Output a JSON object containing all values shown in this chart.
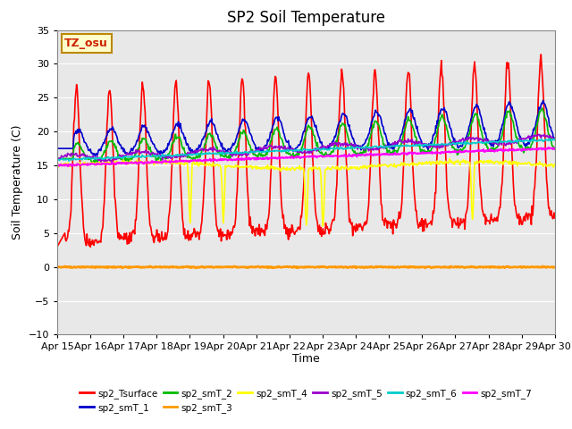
{
  "title": "SP2 Soil Temperature",
  "ylabel": "Soil Temperature (C)",
  "xlabel": "Time",
  "annotation": "TZ_osu",
  "ylim": [
    -10,
    35
  ],
  "background_color": "#ffffff",
  "plot_bg_color": "#e8e8e8",
  "n_days": 15,
  "series_colors": {
    "sp2_Tsurface": "#ff0000",
    "sp2_smT_1": "#0000cc",
    "sp2_smT_2": "#00bb00",
    "sp2_smT_3": "#ff9900",
    "sp2_smT_4": "#ffff00",
    "sp2_smT_5": "#9900cc",
    "sp2_smT_6": "#00cccc",
    "sp2_smT_7": "#ff00ff"
  },
  "series_lw": {
    "sp2_Tsurface": 1.2,
    "sp2_smT_1": 1.2,
    "sp2_smT_2": 1.2,
    "sp2_smT_3": 2.0,
    "sp2_smT_4": 1.2,
    "sp2_smT_5": 1.2,
    "sp2_smT_6": 1.2,
    "sp2_smT_7": 1.5
  },
  "yticks": [
    -10,
    -5,
    0,
    5,
    10,
    15,
    20,
    25,
    30,
    35
  ],
  "xtick_labels": [
    "Apr 15",
    "Apr 16",
    "Apr 17",
    "Apr 18",
    "Apr 19",
    "Apr 20",
    "Apr 21",
    "Apr 22",
    "Apr 23",
    "Apr 24",
    "Apr 25",
    "Apr 26",
    "Apr 27",
    "Apr 28",
    "Apr 29",
    "Apr 30"
  ],
  "legend_order": [
    "sp2_Tsurface",
    "sp2_smT_1",
    "sp2_smT_2",
    "sp2_smT_3",
    "sp2_smT_4",
    "sp2_smT_5",
    "sp2_smT_6",
    "sp2_smT_7"
  ]
}
